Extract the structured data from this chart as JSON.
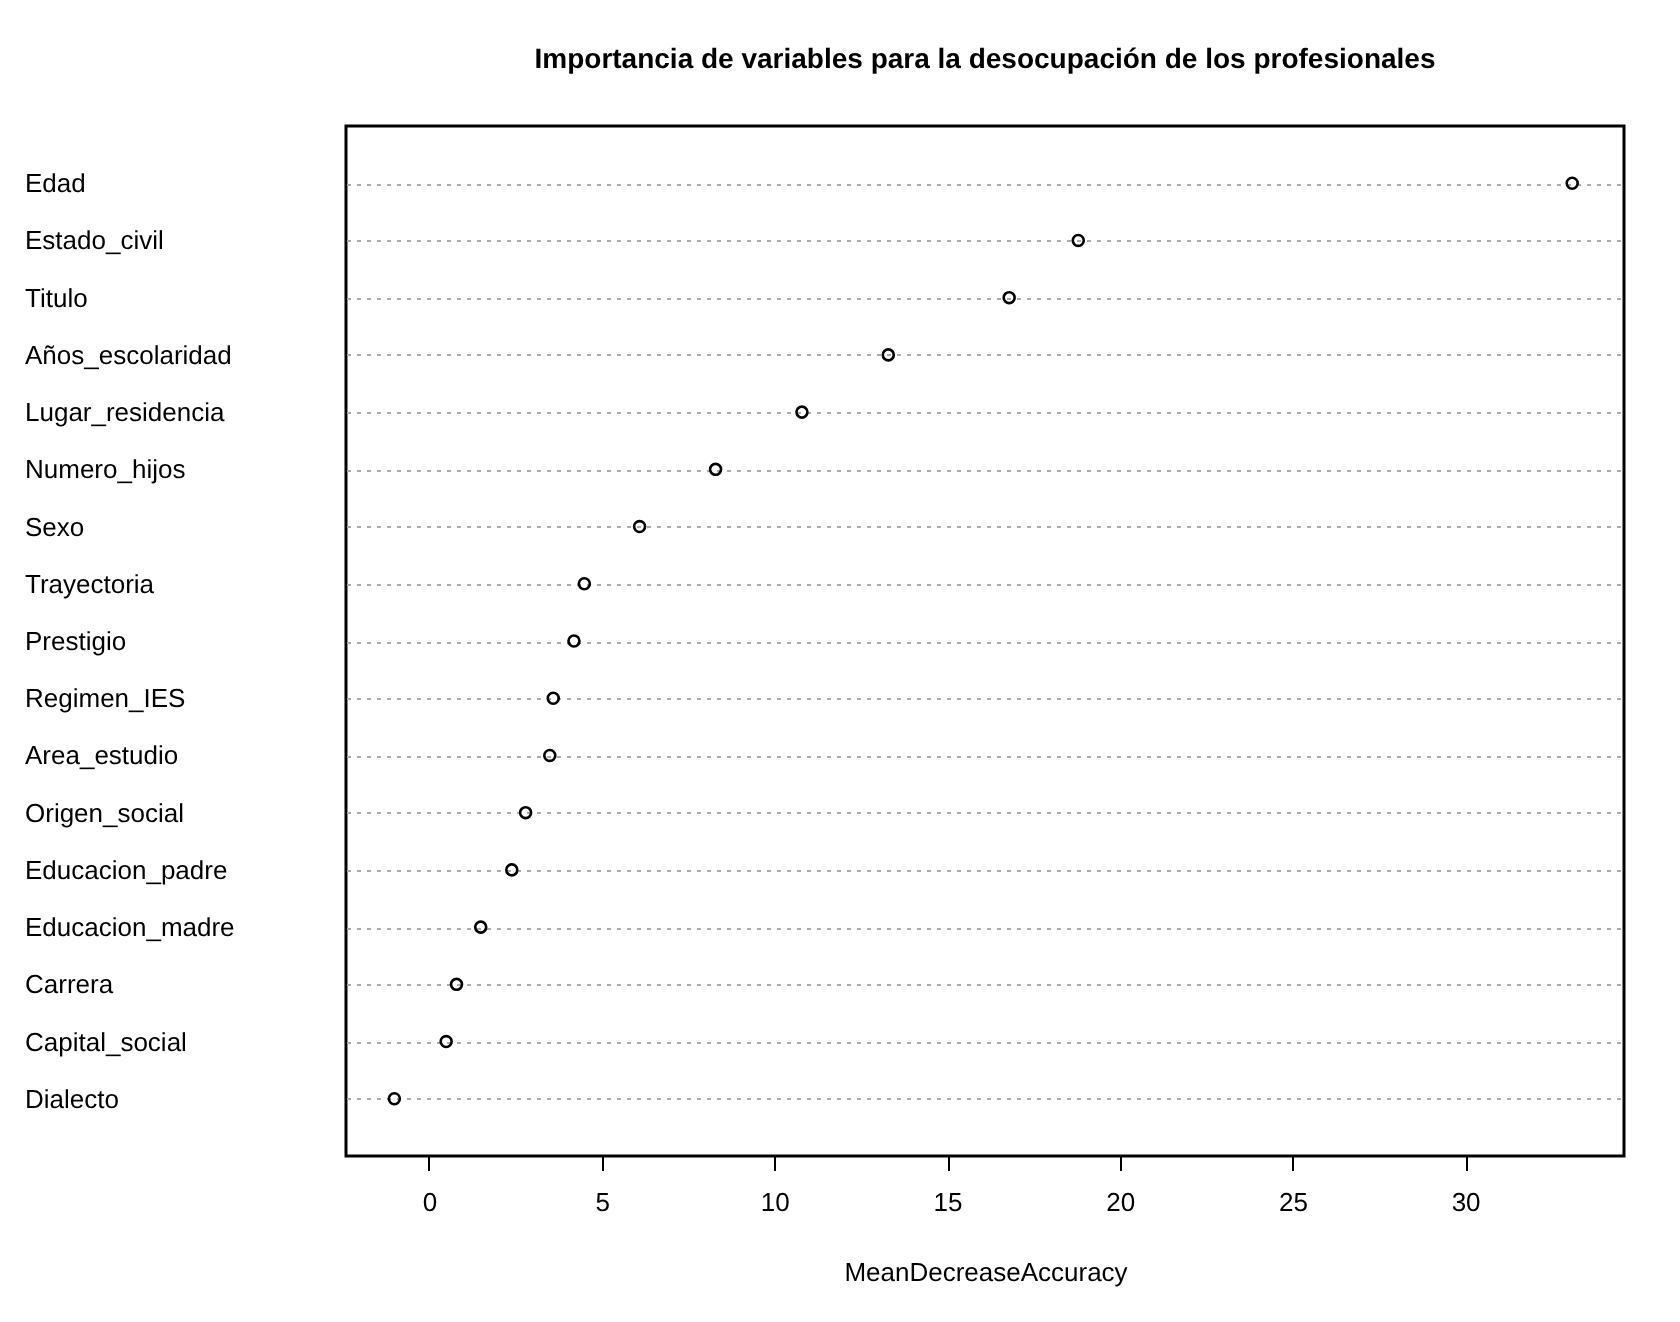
{
  "chart_data": {
    "type": "scatter",
    "title": "Importancia de variables para la desocupación de los profesionales",
    "xlabel": "MeanDecreaseAccuracy",
    "orientation": "horizontal",
    "categories": [
      "Edad",
      "Estado_civil",
      "Titulo",
      "Años_escolaridad",
      "Lugar_residencia",
      "Numero_hijos",
      "Sexo",
      "Trayectoria",
      "Prestigio",
      "Regimen_IES",
      "Area_estudio",
      "Origen_social",
      "Educacion_padre",
      "Educacion_madre",
      "Carrera",
      "Capital_social",
      "Dialecto"
    ],
    "values": [
      33.1,
      18.8,
      16.8,
      13.3,
      10.8,
      8.3,
      6.1,
      4.5,
      4.2,
      3.6,
      3.5,
      2.8,
      2.4,
      1.5,
      0.8,
      0.5,
      -1.0
    ],
    "color": "#000000",
    "marker": "circle",
    "grid": "y",
    "xlim": [
      -2.4,
      34.6
    ],
    "xticks": [
      0,
      5,
      10,
      15,
      20,
      25,
      30
    ]
  }
}
